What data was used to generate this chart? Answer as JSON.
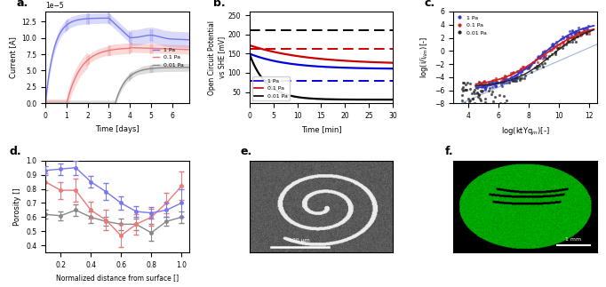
{
  "fig_width": 6.82,
  "fig_height": 3.23,
  "panel_a": {
    "xlabel": "Time [days]",
    "ylabel": "Current [A]",
    "xlim": [
      0,
      6.8
    ],
    "ylim": [
      0,
      0.00014
    ],
    "col_1pa": "#7777ee",
    "col_01pa": "#ee7777",
    "col_001pa": "#888888"
  },
  "panel_b": {
    "xlabel": "Time [min]",
    "ylabel": "Open Circuit Potential\n vs SHE [mV]",
    "xlim": [
      0,
      30
    ],
    "ylim": [
      20,
      260
    ],
    "col_1pa": "#0000dd",
    "col_01pa": "#cc0000",
    "col_001pa": "#000000"
  },
  "panel_c": {
    "xlabel": "log(ktYq_m)[-]",
    "ylabel": "log(i/i_lim)[-]",
    "xlim": [
      3,
      12.5
    ],
    "ylim": [
      -8,
      6
    ],
    "col_1pa": "#3333cc",
    "col_01pa": "#cc2222",
    "col_001pa": "#222222"
  },
  "panel_d": {
    "xlabel": "Normalized distance from surface []",
    "ylabel": "Porosity []",
    "xlim": [
      0.1,
      1.05
    ],
    "ylim": [
      0.35,
      1.0
    ],
    "col_1pa": "#7777ee",
    "col_01pa": "#ee7777",
    "col_001pa": "#888888"
  }
}
